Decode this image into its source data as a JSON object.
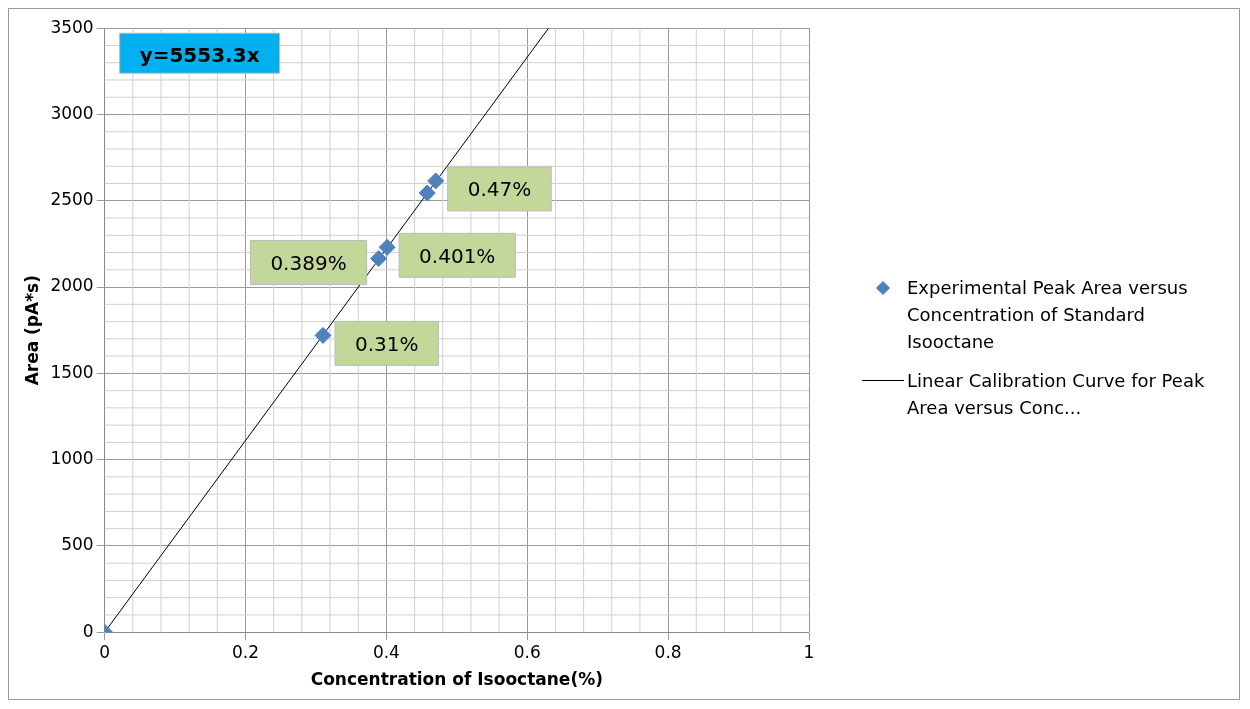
{
  "chart_data": {
    "type": "scatter",
    "xlabel": "Concentration of Isooctane(%)",
    "ylabel": "Area (pA*s)",
    "xlim": [
      0,
      1
    ],
    "xticks": [
      0,
      0.2,
      0.4,
      0.6,
      0.8,
      1
    ],
    "ylim": [
      0,
      3500
    ],
    "yticks": [
      0,
      500,
      1000,
      1500,
      2000,
      2500,
      3000,
      3500
    ],
    "grid": true,
    "legend": "right",
    "annotations": [
      "y=5553.3x",
      {
        "text": "0.31%",
        "x": 0.31,
        "y": 1720
      },
      {
        "text": "0.389%",
        "x": 0.389,
        "y": 2165
      },
      {
        "text": "0.401%",
        "x": 0.401,
        "y": 2230
      },
      {
        "text": "0.47%",
        "x": 0.47,
        "y": 2615
      }
    ],
    "series": [
      {
        "name": "Experimental Peak Area versus Concentration of Standard Isooctane",
        "color": "#4f81bd",
        "marker": "diamond",
        "x": [
          0,
          0.31,
          0.389,
          0.401,
          0.458,
          0.47
        ],
        "values": [
          0,
          1720,
          2165,
          2230,
          2545,
          2615
        ]
      },
      {
        "name": "Linear Calibration Curve for Peak Area versus Conc...",
        "type": "line",
        "color": "#000000",
        "marker": "none",
        "x": [
          0,
          0.63
        ],
        "values": [
          0,
          3499
        ]
      }
    ]
  }
}
